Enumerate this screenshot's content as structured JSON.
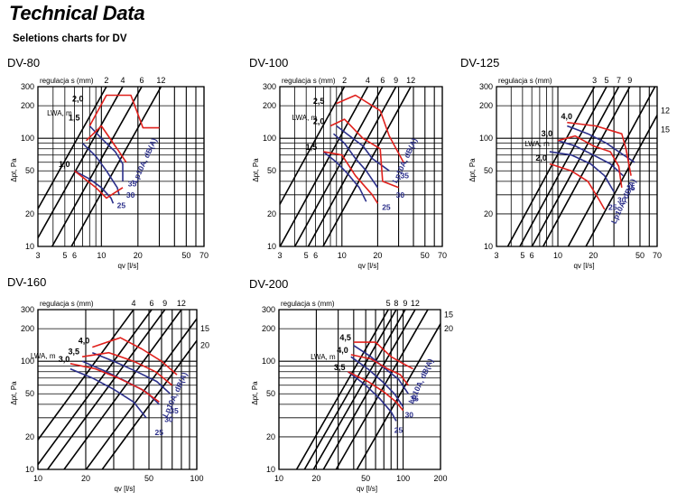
{
  "page": {
    "title": "Technical Data",
    "subtitle": "Seletions charts for DV"
  },
  "chart_data": [
    {
      "title": "DV-80",
      "type": "line",
      "xlabel": "qv [l/s]",
      "ylabel": "Δpt, Pa",
      "xscale": "log",
      "yscale": "log",
      "xlim": [
        3,
        70
      ],
      "ylim": [
        10,
        300
      ],
      "xticks": [
        3,
        5,
        6,
        10,
        20,
        50,
        70
      ],
      "yticks": [
        10,
        20,
        50,
        100,
        200,
        300
      ],
      "setting_label": "regulacja s (mm)",
      "setting_values": [
        "2",
        "4",
        "6",
        "12"
      ],
      "lwa_label": "LWA, m",
      "lwa_values": [
        "2,0",
        "1,5",
        "1,0"
      ],
      "lp_label": "Lp10A, dB(A)",
      "lp_values": [
        "35",
        "30",
        "25"
      ]
    },
    {
      "title": "DV-100",
      "type": "line",
      "xlabel": "qv [l/s]",
      "ylabel": "Δpt, Pa",
      "xscale": "log",
      "yscale": "log",
      "xlim": [
        3,
        70
      ],
      "ylim": [
        10,
        300
      ],
      "xticks": [
        3,
        5,
        6,
        10,
        20,
        50,
        70
      ],
      "yticks": [
        10,
        20,
        50,
        100,
        200,
        300
      ],
      "setting_label": "regulacja s (mm)",
      "setting_values": [
        "2",
        "4",
        "6",
        "9",
        "12"
      ],
      "lwa_label": "LWA, m",
      "lwa_values": [
        "2,5",
        "2,0",
        "1,5"
      ],
      "lp_label": "Lp10A, dB(A)",
      "lp_values": [
        "35",
        "30",
        "25"
      ]
    },
    {
      "title": "DV-125",
      "type": "line",
      "xlabel": "qv [l/s]",
      "ylabel": "Δpt, Pa",
      "xscale": "log",
      "yscale": "log",
      "xlim": [
        3,
        70
      ],
      "ylim": [
        10,
        300
      ],
      "xticks": [
        3,
        5,
        6,
        10,
        20,
        50,
        70
      ],
      "yticks": [
        10,
        20,
        50,
        100,
        200,
        300
      ],
      "setting_label": "regulacja s (mm)",
      "setting_values": [
        "3",
        "5",
        "7",
        "9",
        "12",
        "15"
      ],
      "lwa_label": "LWA, m",
      "lwa_values": [
        "4,0",
        "3,0",
        "2,0"
      ],
      "lp_label": "Lp10A, dB(A)",
      "lp_values": [
        "35",
        "30",
        "25"
      ]
    },
    {
      "title": "DV-160",
      "type": "line",
      "xlabel": "qv [l/s]",
      "ylabel": "Δpt, Pa",
      "xscale": "log",
      "yscale": "log",
      "xlim": [
        10,
        100
      ],
      "ylim": [
        10,
        300
      ],
      "xticks": [
        10,
        20,
        50,
        100
      ],
      "yticks": [
        10,
        20,
        50,
        100,
        200,
        300
      ],
      "setting_label": "regulacja s (mm)",
      "setting_values": [
        "4",
        "6",
        "9",
        "12",
        "15",
        "20"
      ],
      "lwa_label": "LWA, m",
      "lwa_values": [
        "4,0",
        "3,5",
        "3,0"
      ],
      "lp_label": "Lp10A, dB(A)",
      "lp_values": [
        "35",
        "30",
        "25"
      ]
    },
    {
      "title": "DV-200",
      "type": "line",
      "xlabel": "qv [l/s]",
      "ylabel": "Δpt, Pa",
      "xscale": "log",
      "yscale": "log",
      "xlim": [
        10,
        200
      ],
      "ylim": [
        10,
        300
      ],
      "xticks": [
        10,
        20,
        50,
        100,
        200
      ],
      "yticks": [
        10,
        20,
        50,
        100,
        200,
        300
      ],
      "setting_label": "regulacja s (mm)",
      "setting_values": [
        "5",
        "8",
        "9",
        "12",
        "15",
        "20"
      ],
      "lwa_label": "LWA, m",
      "lwa_values": [
        "4,5",
        "4,0",
        "3,5"
      ],
      "lp_label": "Lp10A, dB(A)",
      "lp_values": [
        "35",
        "30",
        "25"
      ]
    }
  ]
}
